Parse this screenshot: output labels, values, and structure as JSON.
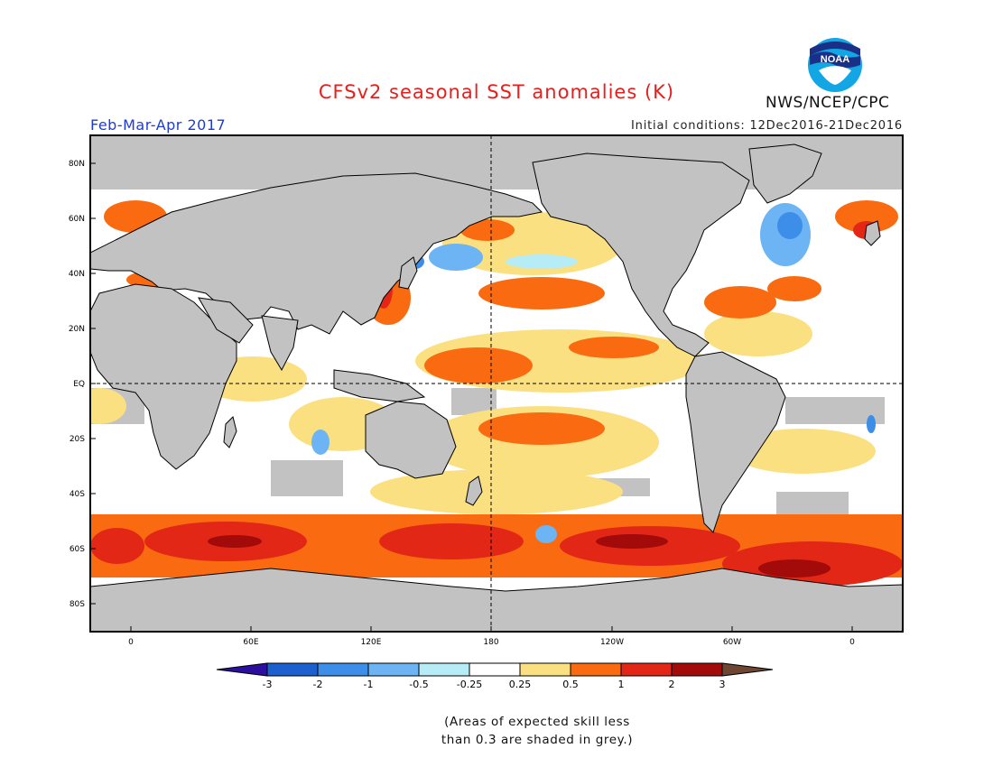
{
  "header": {
    "title": "CFSv2 seasonal SST anomalies (K)",
    "season": "Feb-Mar-Apr 2017",
    "initial_conditions": "Initial conditions: 12Dec2016-21Dec2016",
    "agency": "NWS/NCEP/CPC",
    "logo_text": "NOAA"
  },
  "map": {
    "lat_labels": [
      "80N",
      "60N",
      "40N",
      "20N",
      "EQ",
      "20S",
      "40S",
      "60S",
      "80S"
    ],
    "lon_labels": [
      "0",
      "60E",
      "120E",
      "180",
      "120W",
      "60W",
      "0"
    ]
  },
  "legend": {
    "labels": [
      "-3",
      "-2",
      "-1",
      "-0.5",
      "-0.25",
      "0.25",
      "0.5",
      "1",
      "2",
      "3"
    ],
    "colors": [
      "#2c0fa0",
      "#1c5fd1",
      "#3c8ee8",
      "#6cb4f4",
      "#b6ecf6",
      "#ffffff",
      "#fbe082",
      "#fa6a10",
      "#e22716",
      "#a30a0a",
      "#6e4632"
    ]
  },
  "colors": {
    "land": "#c2c2c2",
    "ocean": "#ffffff",
    "title": "#e5201e",
    "season": "#1f3bd6"
  },
  "note": {
    "line1": "(Areas of expected skill less",
    "line2": "than 0.3 are shaded in grey.)"
  }
}
